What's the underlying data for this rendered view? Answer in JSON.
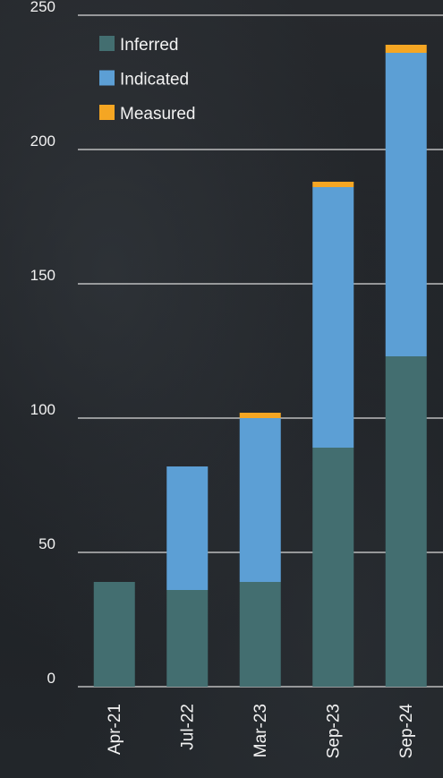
{
  "colors": {
    "background": "#1f2226",
    "gridline": "#d9d9d9",
    "tick_text": "#f2f2f2"
  },
  "chart_data": {
    "type": "bar",
    "stacked": true,
    "categories": [
      "Apr-21",
      "Jul-22",
      "Mar-23",
      "Sep-23",
      "Sep-24"
    ],
    "series": [
      {
        "name": "Inferred",
        "color": "#436e70",
        "values": [
          39,
          36,
          39,
          89,
          123
        ]
      },
      {
        "name": "Indicated",
        "color": "#5c9fd5",
        "values": [
          0,
          46,
          61,
          97,
          113
        ]
      },
      {
        "name": "Measured",
        "color": "#f5a623",
        "values": [
          0,
          0,
          2,
          2,
          3
        ]
      }
    ],
    "ylim": [
      0,
      250
    ],
    "yticks": [
      0,
      50,
      100,
      150,
      200,
      250
    ],
    "grid": true,
    "legend_position": "top-left"
  }
}
